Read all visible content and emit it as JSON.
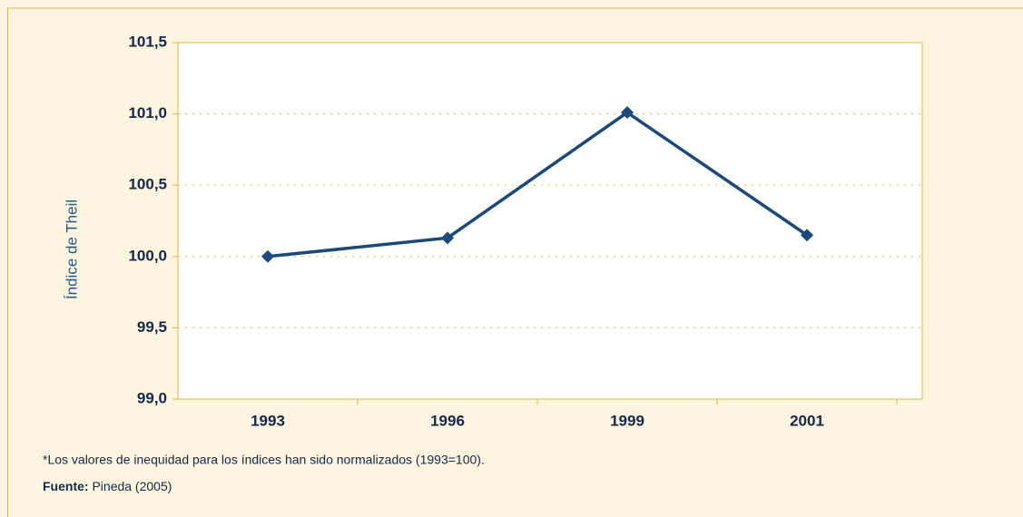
{
  "chart_data": {
    "type": "line",
    "y_label": "Índice de Theil",
    "categories": [
      "1993",
      "1996",
      "1999",
      "2001"
    ],
    "series": [
      {
        "name": "Índice de Theil",
        "color": "#1b4a7a",
        "values": [
          100.0,
          100.13,
          101.01,
          100.15
        ]
      }
    ],
    "ylim": [
      99.0,
      101.5
    ],
    "yticks": [
      {
        "value": 99.0,
        "label": "99,0"
      },
      {
        "value": 99.5,
        "label": "99,5"
      },
      {
        "value": 100.0,
        "label": "100,0"
      },
      {
        "value": 100.5,
        "label": "100,5"
      },
      {
        "value": 101.0,
        "label": "101,0"
      },
      {
        "value": 101.5,
        "label": "101,5"
      }
    ],
    "grid": true
  },
  "footnote": "*Los valores de inequidad para los índices han sido normalizados (1993=100).",
  "source_label": "Fuente:",
  "source": "Pineda (2005)"
}
